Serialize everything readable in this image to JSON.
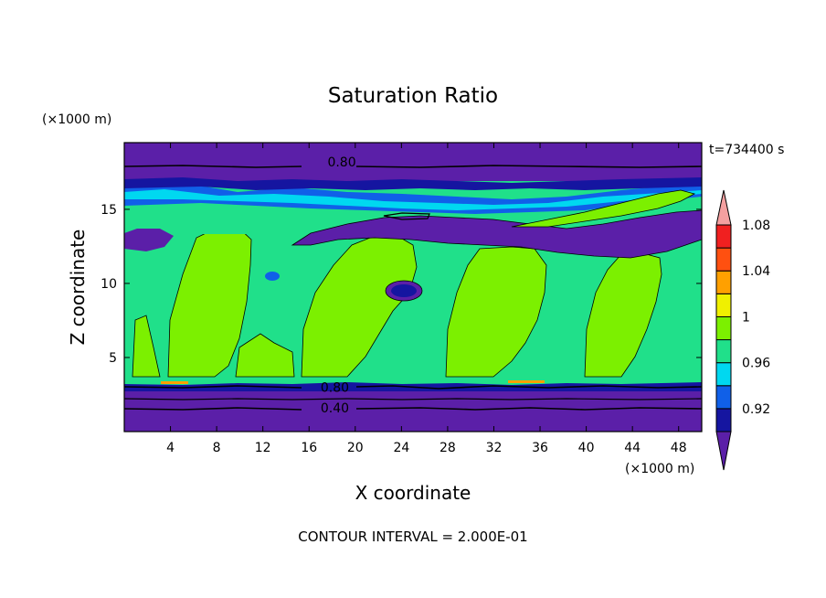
{
  "chart_data": {
    "type": "heatmap",
    "title": "Saturation Ratio",
    "xlabel": "X coordinate",
    "ylabel": "Z coordinate",
    "x_unit": "(×1000 m)",
    "y_unit": "(×1000 m)",
    "time_label": "t=734400 s",
    "footer": "CONTOUR INTERVAL = 2.000E-01",
    "xlim": [
      0,
      50
    ],
    "ylim": [
      0,
      19.5
    ],
    "x_ticks": [
      4,
      8,
      12,
      16,
      20,
      24,
      28,
      32,
      36,
      40,
      44,
      48
    ],
    "y_ticks": [
      5,
      10,
      15
    ],
    "contour_labels": [
      {
        "text": "0.80",
        "x": 17.6,
        "y": 18.2
      },
      {
        "text": "0.80",
        "x": 17.0,
        "y": 3.0
      },
      {
        "text": "0.40",
        "x": 17.0,
        "y": 1.6
      }
    ],
    "colorbar": {
      "levels": [
        "0.92",
        "0.96",
        "1",
        "1.04",
        "1.08"
      ],
      "colors": [
        "#5b1fa8",
        "#1515a0",
        "#1060e8",
        "#00d8f0",
        "#20e08a",
        "#7cf000",
        "#f0f000",
        "#ffa000",
        "#ff5010",
        "#f02020",
        "#f4a0a0"
      ]
    },
    "regions": {
      "top_band_z": [
        18.0,
        19.5
      ],
      "upper_moist_band_z": [
        12.0,
        17.0
      ],
      "mid_layer_z": [
        3.5,
        12.0
      ],
      "lower_band_z": [
        0,
        3.5
      ],
      "moist_plumes_x_centers": [
        10,
        24,
        36,
        44,
        4
      ]
    }
  }
}
